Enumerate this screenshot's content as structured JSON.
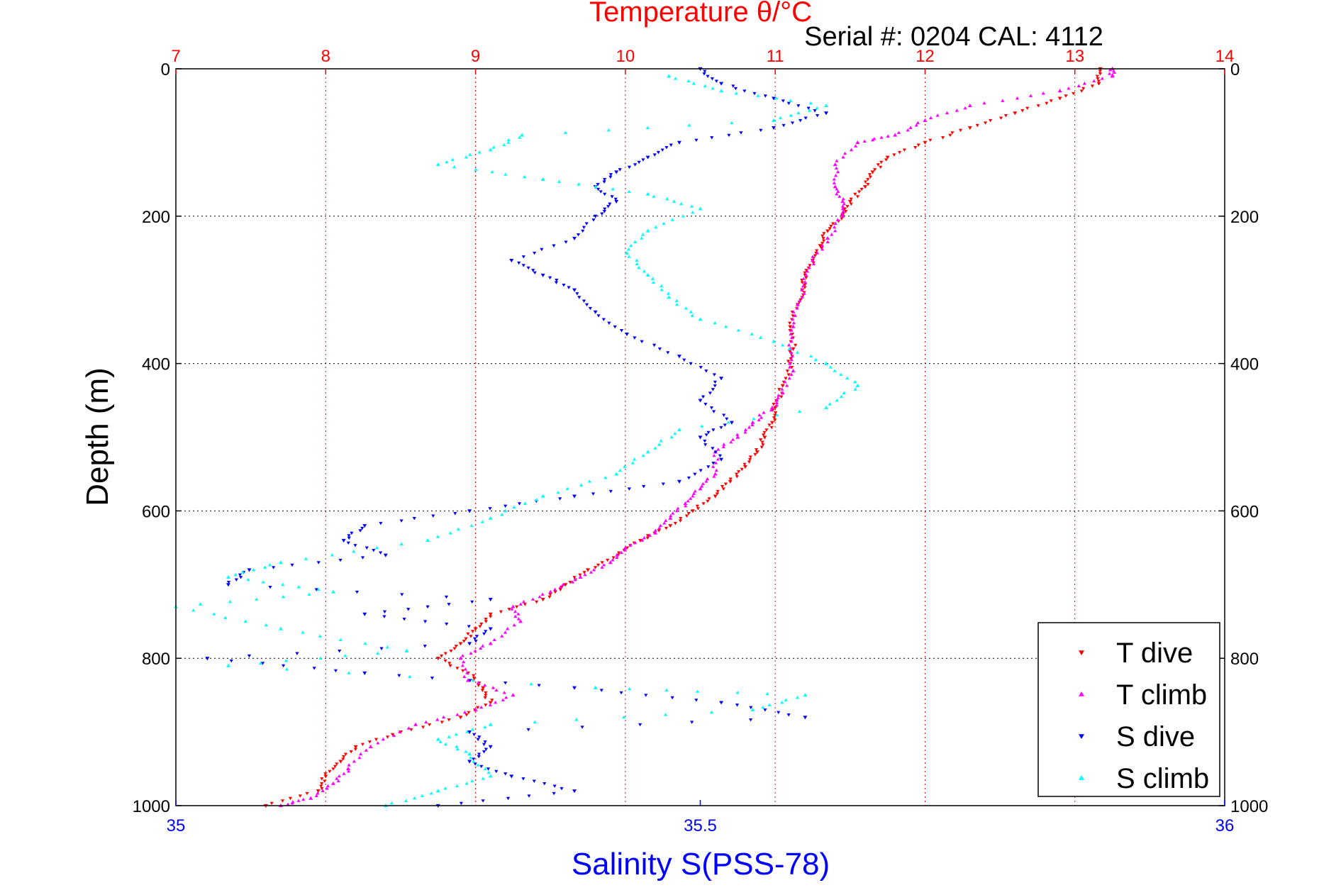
{
  "chart_data": {
    "type": "scatter",
    "title": "Temperature θ/°C",
    "subtitle": "Serial #: 0204  CAL: 4112",
    "ylabel": "Depth (m)",
    "xlabel": "Salinity S(PSS-78)",
    "ylim": [
      0,
      1000
    ],
    "y_inverted": true,
    "temperature_axis": {
      "position": "top",
      "range": [
        7,
        14
      ],
      "ticks": [
        "7",
        "8",
        "9",
        "10",
        "11",
        "12",
        "13",
        "14"
      ]
    },
    "salinity_axis": {
      "position": "bottom",
      "range": [
        35,
        36
      ],
      "ticks": [
        "35",
        "35.5",
        "36"
      ]
    },
    "depth_ticks": [
      "0",
      "200",
      "400",
      "600",
      "800",
      "1000"
    ],
    "grid": true,
    "legend_position": "bottom-right",
    "colors": {
      "temperature_axis": "#ff0000",
      "salinity_axis": "#0000ff",
      "frame": "#000000",
      "grid": "#000000"
    },
    "series": [
      {
        "name": "T dive",
        "axis": "temperature",
        "marker": "triangle-down",
        "color": "#ff0000",
        "points": [
          [
            13.17,
            0
          ],
          [
            13.16,
            20
          ],
          [
            12.9,
            40
          ],
          [
            12.6,
            60
          ],
          [
            12.3,
            80
          ],
          [
            12.0,
            100
          ],
          [
            11.75,
            120
          ],
          [
            11.65,
            140
          ],
          [
            11.6,
            160
          ],
          [
            11.5,
            180
          ],
          [
            11.45,
            200
          ],
          [
            11.35,
            220
          ],
          [
            11.3,
            240
          ],
          [
            11.25,
            260
          ],
          [
            11.2,
            280
          ],
          [
            11.18,
            300
          ],
          [
            11.15,
            320
          ],
          [
            11.1,
            350
          ],
          [
            11.12,
            380
          ],
          [
            11.1,
            400
          ],
          [
            11.05,
            430
          ],
          [
            11.0,
            460
          ],
          [
            10.98,
            480
          ],
          [
            10.93,
            500
          ],
          [
            10.88,
            520
          ],
          [
            10.8,
            540
          ],
          [
            10.7,
            560
          ],
          [
            10.6,
            580
          ],
          [
            10.45,
            600
          ],
          [
            10.3,
            620
          ],
          [
            10.1,
            640
          ],
          [
            9.95,
            660
          ],
          [
            9.75,
            680
          ],
          [
            9.6,
            700
          ],
          [
            9.45,
            720
          ],
          [
            9.1,
            740
          ],
          [
            9.0,
            760
          ],
          [
            8.9,
            780
          ],
          [
            8.75,
            800
          ],
          [
            8.95,
            820
          ],
          [
            9.05,
            840
          ],
          [
            9.1,
            860
          ],
          [
            8.9,
            880
          ],
          [
            8.5,
            900
          ],
          [
            8.2,
            920
          ],
          [
            8.1,
            940
          ],
          [
            8.0,
            960
          ],
          [
            7.95,
            980
          ],
          [
            7.6,
            1000
          ]
        ]
      },
      {
        "name": "T climb",
        "axis": "temperature",
        "marker": "triangle-up",
        "color": "#ff00ff",
        "points": [
          [
            13.25,
            0
          ],
          [
            13.25,
            10
          ],
          [
            12.9,
            30
          ],
          [
            12.3,
            50
          ],
          [
            12.0,
            70
          ],
          [
            11.8,
            90
          ],
          [
            11.55,
            100
          ],
          [
            11.4,
            130
          ],
          [
            11.4,
            160
          ],
          [
            11.45,
            180
          ],
          [
            11.45,
            200
          ],
          [
            11.35,
            230
          ],
          [
            11.25,
            260
          ],
          [
            11.2,
            290
          ],
          [
            11.15,
            320
          ],
          [
            11.12,
            350
          ],
          [
            11.1,
            380
          ],
          [
            11.12,
            410
          ],
          [
            11.05,
            440
          ],
          [
            10.98,
            460
          ],
          [
            10.85,
            480
          ],
          [
            10.75,
            500
          ],
          [
            10.6,
            520
          ],
          [
            10.6,
            550
          ],
          [
            10.5,
            570
          ],
          [
            10.4,
            590
          ],
          [
            10.3,
            610
          ],
          [
            10.2,
            630
          ],
          [
            10.0,
            650
          ],
          [
            9.9,
            670
          ],
          [
            9.7,
            690
          ],
          [
            9.5,
            710
          ],
          [
            9.25,
            730
          ],
          [
            9.3,
            750
          ],
          [
            9.1,
            780
          ],
          [
            8.9,
            800
          ],
          [
            8.95,
            830
          ],
          [
            9.25,
            850
          ],
          [
            9.0,
            870
          ],
          [
            8.6,
            890
          ],
          [
            8.3,
            920
          ],
          [
            8.15,
            950
          ],
          [
            8.05,
            970
          ],
          [
            7.9,
            990
          ],
          [
            7.7,
            1000
          ]
        ]
      },
      {
        "name": "S dive",
        "axis": "salinity",
        "marker": "triangle-down",
        "color": "#0000ff",
        "points": [
          [
            35.5,
            0
          ],
          [
            35.52,
            20
          ],
          [
            35.57,
            40
          ],
          [
            35.62,
            60
          ],
          [
            35.57,
            80
          ],
          [
            35.48,
            100
          ],
          [
            35.45,
            120
          ],
          [
            35.42,
            140
          ],
          [
            35.4,
            160
          ],
          [
            35.42,
            180
          ],
          [
            35.4,
            200
          ],
          [
            35.38,
            230
          ],
          [
            35.32,
            260
          ],
          [
            35.35,
            280
          ],
          [
            35.38,
            300
          ],
          [
            35.4,
            330
          ],
          [
            35.43,
            360
          ],
          [
            35.48,
            390
          ],
          [
            35.52,
            420
          ],
          [
            35.5,
            450
          ],
          [
            35.53,
            480
          ],
          [
            35.5,
            500
          ],
          [
            35.52,
            530
          ],
          [
            35.48,
            560
          ],
          [
            35.38,
            580
          ],
          [
            35.28,
            600
          ],
          [
            35.18,
            620
          ],
          [
            35.16,
            640
          ],
          [
            35.2,
            660
          ],
          [
            35.07,
            680
          ],
          [
            35.05,
            700
          ],
          [
            35.3,
            720
          ],
          [
            35.18,
            740
          ],
          [
            35.3,
            760
          ],
          [
            35.28,
            780
          ],
          [
            35.03,
            800
          ],
          [
            35.18,
            820
          ],
          [
            35.38,
            840
          ],
          [
            35.52,
            860
          ],
          [
            35.6,
            880
          ],
          [
            35.28,
            900
          ],
          [
            35.3,
            920
          ],
          [
            35.28,
            940
          ],
          [
            35.32,
            960
          ],
          [
            35.38,
            980
          ],
          [
            35.25,
            1000
          ]
        ]
      },
      {
        "name": "S climb",
        "axis": "salinity",
        "marker": "triangle-up",
        "color": "#00ffff",
        "points": [
          [
            35.47,
            10
          ],
          [
            35.52,
            30
          ],
          [
            35.62,
            50
          ],
          [
            35.57,
            70
          ],
          [
            35.33,
            90
          ],
          [
            35.3,
            110
          ],
          [
            35.25,
            130
          ],
          [
            35.35,
            150
          ],
          [
            35.45,
            170
          ],
          [
            35.5,
            190
          ],
          [
            35.45,
            220
          ],
          [
            35.43,
            250
          ],
          [
            35.45,
            280
          ],
          [
            35.47,
            310
          ],
          [
            35.5,
            340
          ],
          [
            35.57,
            370
          ],
          [
            35.62,
            400
          ],
          [
            35.65,
            430
          ],
          [
            35.62,
            460
          ],
          [
            35.48,
            490
          ],
          [
            35.45,
            520
          ],
          [
            35.42,
            550
          ],
          [
            35.35,
            580
          ],
          [
            35.3,
            610
          ],
          [
            35.24,
            640
          ],
          [
            35.1,
            670
          ],
          [
            35.05,
            690
          ],
          [
            35.15,
            710
          ],
          [
            35.0,
            730
          ],
          [
            35.1,
            760
          ],
          [
            35.22,
            790
          ],
          [
            35.05,
            810
          ],
          [
            35.4,
            840
          ],
          [
            35.6,
            850
          ],
          [
            35.55,
            870
          ],
          [
            35.3,
            890
          ],
          [
            35.25,
            910
          ],
          [
            35.28,
            930
          ],
          [
            35.3,
            960
          ],
          [
            35.25,
            980
          ],
          [
            35.2,
            1000
          ]
        ]
      }
    ]
  }
}
